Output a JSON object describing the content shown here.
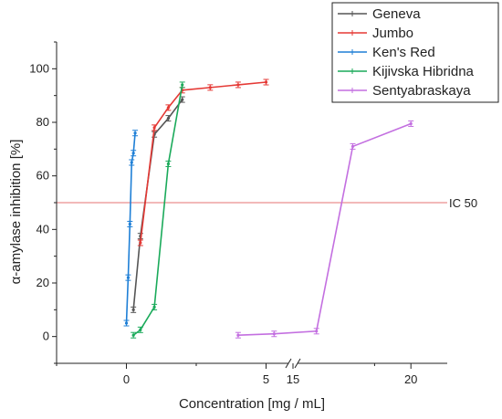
{
  "chart_data": {
    "type": "line",
    "title": "",
    "xlabel": "Concentration [mg / mL]",
    "ylabel": "α-amylase inhibition [%]",
    "ylim": [
      -10,
      110
    ],
    "yticks": [
      0,
      20,
      40,
      60,
      80,
      100
    ],
    "x_axis_break": {
      "from": 5,
      "to": 12.5
    },
    "xticks": [
      0,
      5,
      15,
      20
    ],
    "xlim_left": [
      -2.5,
      5.8
    ],
    "xlim_right": [
      12.2,
      22.5
    ],
    "grid": false,
    "legend_placement": "top-right",
    "series": [
      {
        "name": "Geneva",
        "color": "#555555",
        "x": [
          0.25,
          0.5,
          1,
          1.5,
          2
        ],
        "y": [
          10,
          37.5,
          75.5,
          81.5,
          88.5
        ]
      },
      {
        "name": "Jumbo",
        "color": "#e53935",
        "x": [
          0.5,
          1,
          1.5,
          2,
          3,
          4,
          5
        ],
        "y": [
          35,
          78,
          85.5,
          92,
          93,
          94,
          95
        ]
      },
      {
        "name": "Ken's Red",
        "color": "#1e7fd6",
        "x": [
          0,
          0.0625,
          0.125,
          0.1875,
          0.25,
          0.3125
        ],
        "y": [
          5,
          22,
          42,
          65,
          68.5,
          76
        ]
      },
      {
        "name": "Kijivska Hibridna",
        "color": "#1aaa5a",
        "x": [
          0.25,
          0.5,
          1,
          1.5,
          2
        ],
        "y": [
          0.5,
          2.5,
          11,
          64.5,
          94
        ]
      },
      {
        "name": "Sentyabraskaya",
        "color": "#c36fe0",
        "x": [
          4,
          6.5,
          13.5,
          16,
          20
        ],
        "y": [
          0.5,
          1,
          2,
          71,
          79.5
        ]
      }
    ],
    "annotations": [
      {
        "text": "IC 50",
        "y": 50,
        "color": "#e57373"
      }
    ]
  }
}
